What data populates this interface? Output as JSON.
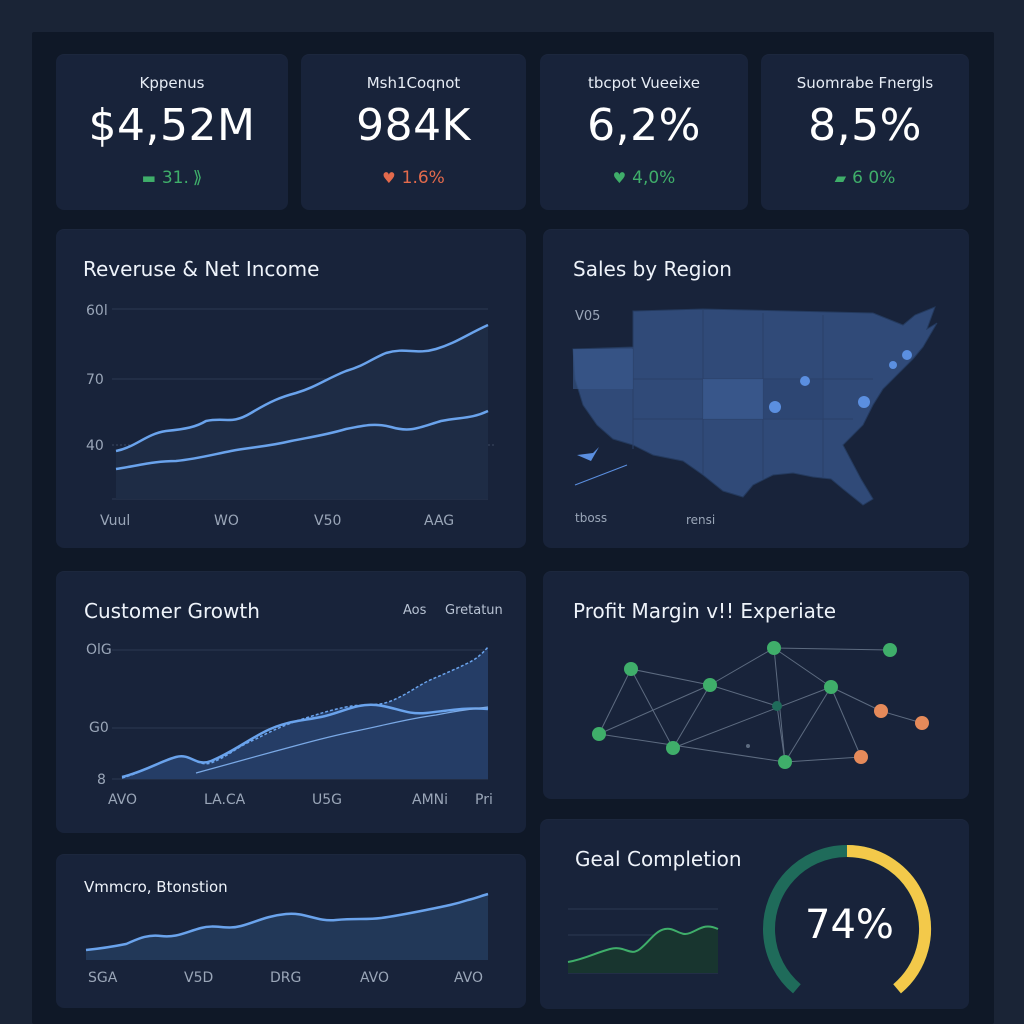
{
  "kpis": [
    {
      "label": "Kppenus",
      "value": "$4,52M",
      "delta": "31.",
      "trend": "up",
      "color": "#3fae6a"
    },
    {
      "label": "Msh1Coqnot",
      "value": "984K",
      "delta": "1.6%",
      "trend": "down",
      "color": "#e36a4c"
    },
    {
      "label": "tbcpot Vueeixe",
      "value": "6,2%",
      "delta": "4,0%",
      "trend": "up",
      "color": "#3fae6a"
    },
    {
      "label": "Suomrabe Fnergls",
      "value": "8,5%",
      "delta": "6 0%",
      "trend": "up",
      "color": "#3fae6a"
    }
  ],
  "revenue_card": {
    "title": "Reveruse & Net Income",
    "y_ticks": [
      "60l",
      "70",
      "40"
    ],
    "x_ticks": [
      "Vuul",
      "WO",
      "V50",
      "AAG"
    ]
  },
  "region_card": {
    "title": "Sales by Region",
    "labels": [
      "V05",
      "tboss",
      "rensi"
    ]
  },
  "customer_card": {
    "title": "Customer Growth",
    "legend": [
      "Aos",
      "Gretatun"
    ],
    "y_ticks": [
      "OlG",
      "G0",
      "8"
    ],
    "x_ticks": [
      "AVO",
      "LA.CA",
      "U5G",
      "AMNi",
      "Pri"
    ]
  },
  "profit_card": {
    "title": "Profit Margin v!! Experiate"
  },
  "bottom_card": {
    "title": "Vmmcro, Btonstion",
    "x_ticks": [
      "SGA",
      "V5D",
      "DRG",
      "AVO",
      "AVO"
    ]
  },
  "goal_card": {
    "title": "Geal Completion",
    "percent_label": "74%",
    "progress": 0.74,
    "track_color": "#1f6b5a",
    "fill_color": "#f3c94a"
  },
  "colors": {
    "line_blue": "#6aa3ec",
    "area_blue": "#2b4f85",
    "green": "#3fae6a",
    "orange": "#e58a5a"
  }
}
